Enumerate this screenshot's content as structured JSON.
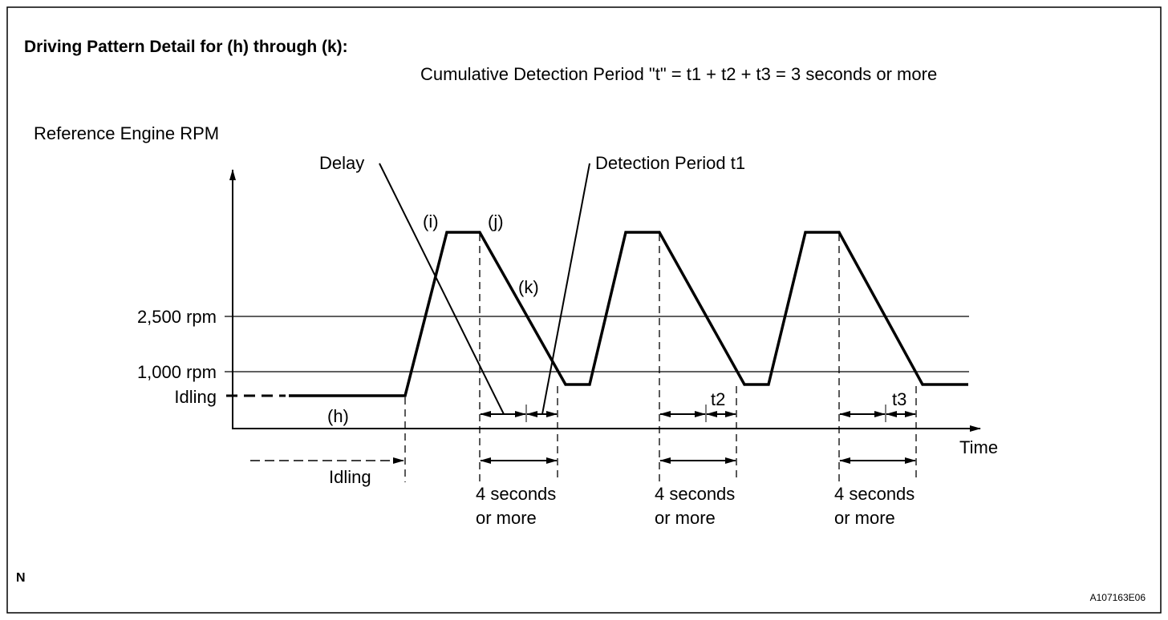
{
  "title": "Driving Pattern Detail for (h) through (k):",
  "formula": "Cumulative Detection Period \"t\" = t1 + t2 + t3 = 3 seconds or more",
  "y_axis_label": "Reference Engine RPM",
  "x_axis_label": "Time",
  "levels": {
    "rpm2500": "2,500 rpm",
    "rpm1000": "1,000 rpm",
    "idling": "Idling"
  },
  "annotations": {
    "delay": "Delay",
    "detection": "Detection Period t1",
    "i": "(i)",
    "j": "(j)",
    "k": "(k)",
    "h": "(h)",
    "t2": "t2",
    "t3": "t3",
    "idling_span": "Idling"
  },
  "durations": [
    {
      "line1": "4 seconds",
      "line2": "or more"
    },
    {
      "line1": "4 seconds",
      "line2": "or more"
    },
    {
      "line1": "4 seconds",
      "line2": "or more"
    }
  ],
  "corner_mark": "N",
  "figure_id": "A107163E06"
}
